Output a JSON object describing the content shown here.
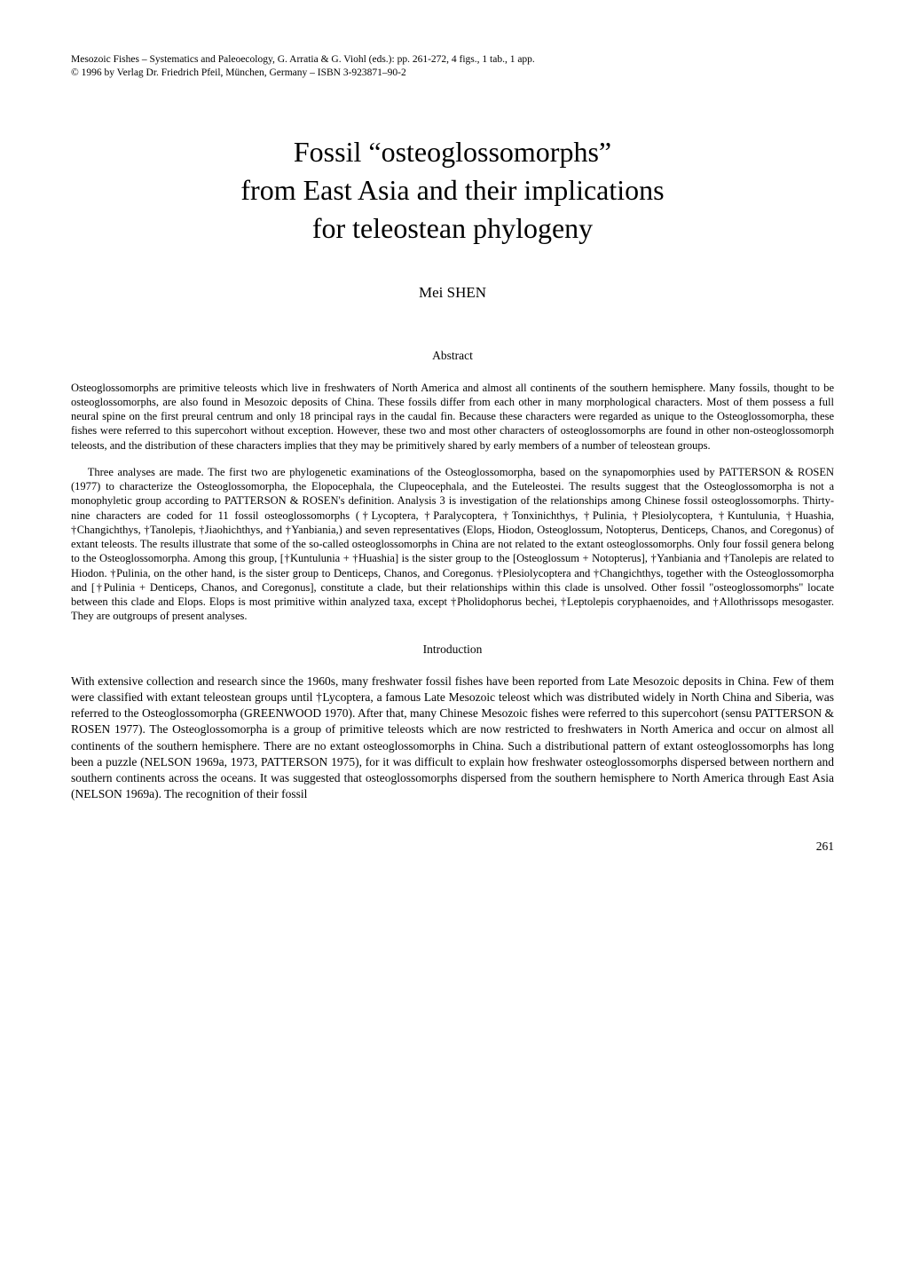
{
  "citation": {
    "line1": "Mesozoic Fishes – Systematics and Paleoecology, G. Arratia & G. Viohl (eds.): pp. 261-272, 4 figs., 1 tab., 1 app.",
    "line2": "© 1996 by Verlag Dr. Friedrich Pfeil, München, Germany – ISBN 3-923871–90-2"
  },
  "title": {
    "line1_pre": "Fossil ",
    "line1_quoted": "osteoglossomorphs",
    "line2": "from East Asia and their implications",
    "line3": "for teleostean phylogeny"
  },
  "author": "Mei SHEN",
  "abstract": {
    "heading": "Abstract",
    "para1": "Osteoglossomorphs are primitive teleosts which live in freshwaters of North America and almost all continents of the southern hemisphere. Many fossils, thought to be osteoglossomorphs, are also found in Mesozoic deposits of China. These fossils differ from each other in many morphological characters. Most of them possess a full neural spine on the first preural centrum and only 18 principal rays in the caudal fin. Because these characters were regarded as unique to the Osteoglossomorpha, these fishes were referred to this supercohort without exception. However, these two and most other characters of osteoglossomorphs are found in other non-osteoglossomorph teleosts, and the distribution of these characters implies that they may be primitively shared by early members of a number of teleostean groups.",
    "para2": "Three analyses are made. The first two are phylogenetic examinations of the Osteoglossomorpha, based on the synapomorphies used by PATTERSON & ROSEN (1977) to characterize the Osteoglossomorpha, the Elopocephala, the Clupeocephala, and the Euteleostei. The results suggest that the Osteoglossomorpha is not a monophyletic group according to PATTERSON & ROSEN's definition. Analysis 3 is investigation of the relationships among Chinese fossil osteoglossomorphs. Thirty-nine characters are coded for 11 fossil osteoglossomorphs (†Lycoptera, †Paralycoptera, †Tonxinichthys, †Pulinia, †Plesiolycoptera, †Kuntulunia, †Huashia, †Changichthys, †Tanolepis, †Jiaohichthys, and †Yanbiania,) and seven representatives (Elops, Hiodon, Osteoglossum, Notopterus, Denticeps, Chanos, and Coregonus) of extant teleosts. The results illustrate that some of the so-called osteoglossomorphs in China are not related to the extant osteoglossomorphs. Only four fossil genera belong to the Osteoglossomorpha. Among this group, [†Kuntulunia + †Huashia] is the sister group to the [Osteoglossum + Notopterus], †Yanbiania and †Tanolepis are related to Hiodon. †Pulinia, on the other hand, is the sister group to Denticeps, Chanos, and Coregonus. †Plesiolycoptera and †Changichthys, together with the Osteoglossomorpha and [†Pulinia + Denticeps, Chanos, and Coregonus], constitute a clade, but their relationships within this clade is unsolved. Other fossil \"osteoglossomorphs\" locate between this clade and Elops. Elops is most primitive within analyzed taxa, except †Pholidophorus bechei, †Leptolepis coryphaenoides, and †Allothrissops mesogaster. They are outgroups of present analyses."
  },
  "introduction": {
    "heading": "Introduction",
    "para1": "With extensive collection and research since the 1960s, many freshwater fossil fishes have been reported from Late Mesozoic deposits in China. Few of them were classified with extant teleostean groups until †Lycoptera, a famous Late Mesozoic teleost which was distributed widely in North China and Siberia, was referred to the Osteoglossomorpha (GREENWOOD 1970). After that, many Chinese Mesozoic fishes were referred to this supercohort (sensu PATTERSON & ROSEN 1977). The Osteoglossomorpha is a group of primitive teleosts which are now restricted to freshwaters in North America and occur on almost all continents of the southern hemisphere. There are no extant osteoglossomorphs in China. Such a distributional pattern of extant osteoglossomorphs has long been a puzzle (NELSON 1969a, 1973, PATTERSON 1975), for it was difficult to explain how freshwater osteoglossomorphs dispersed between northern and southern continents across the oceans. It was suggested that osteoglossomorphs dispersed from the southern hemisphere to North America through East Asia (NELSON 1969a). The recognition of their fossil"
  },
  "page_number": "261"
}
